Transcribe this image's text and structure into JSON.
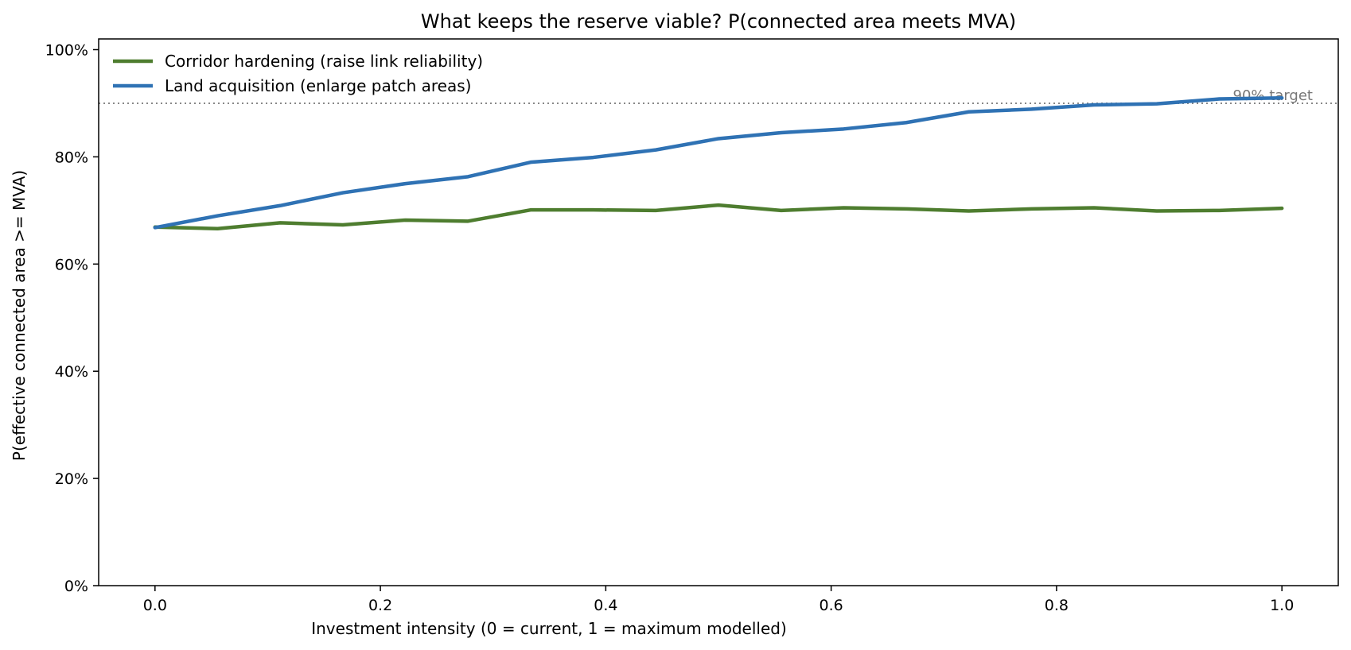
{
  "chart_data": {
    "type": "line",
    "title": "What keeps the reserve viable? P(connected area meets MVA)",
    "xlabel": "Investment intensity  (0 = current, 1 = maximum modelled)",
    "ylabel": "P(effective connected area >= MVA)",
    "xlim": [
      -0.05,
      1.05
    ],
    "ylim": [
      0,
      1.02
    ],
    "x_ticks": [
      0.0,
      0.2,
      0.4,
      0.6,
      0.8,
      1.0
    ],
    "x_tick_labels": [
      "0.0",
      "0.2",
      "0.4",
      "0.6",
      "0.8",
      "1.0"
    ],
    "y_ticks": [
      0,
      0.2,
      0.4,
      0.6,
      0.8,
      1.0
    ],
    "y_tick_labels": [
      "0%",
      "20%",
      "40%",
      "60%",
      "80%",
      "100%"
    ],
    "grid": false,
    "legend_position": "top-left",
    "x": [
      0.0,
      0.0556,
      0.1111,
      0.1667,
      0.2222,
      0.2778,
      0.3333,
      0.3889,
      0.4444,
      0.5,
      0.5556,
      0.6111,
      0.6667,
      0.7222,
      0.7778,
      0.8333,
      0.8889,
      0.9444,
      1.0
    ],
    "series": [
      {
        "name": "Corridor hardening (raise link reliability)",
        "color": "#4e7d2f",
        "values": [
          0.669,
          0.666,
          0.677,
          0.673,
          0.682,
          0.68,
          0.701,
          0.701,
          0.7,
          0.71,
          0.7,
          0.705,
          0.703,
          0.699,
          0.703,
          0.705,
          0.699,
          0.7,
          0.704
        ]
      },
      {
        "name": "Land acquisition (enlarge patch areas)",
        "color": "#2f72b4",
        "values": [
          0.668,
          0.69,
          0.709,
          0.733,
          0.75,
          0.763,
          0.79,
          0.799,
          0.813,
          0.834,
          0.845,
          0.852,
          0.864,
          0.884,
          0.889,
          0.897,
          0.899,
          0.908,
          0.91
        ]
      }
    ],
    "reference_line": {
      "y": 0.9,
      "label": "90% target",
      "color": "#888888",
      "label_color": "#777777"
    }
  }
}
